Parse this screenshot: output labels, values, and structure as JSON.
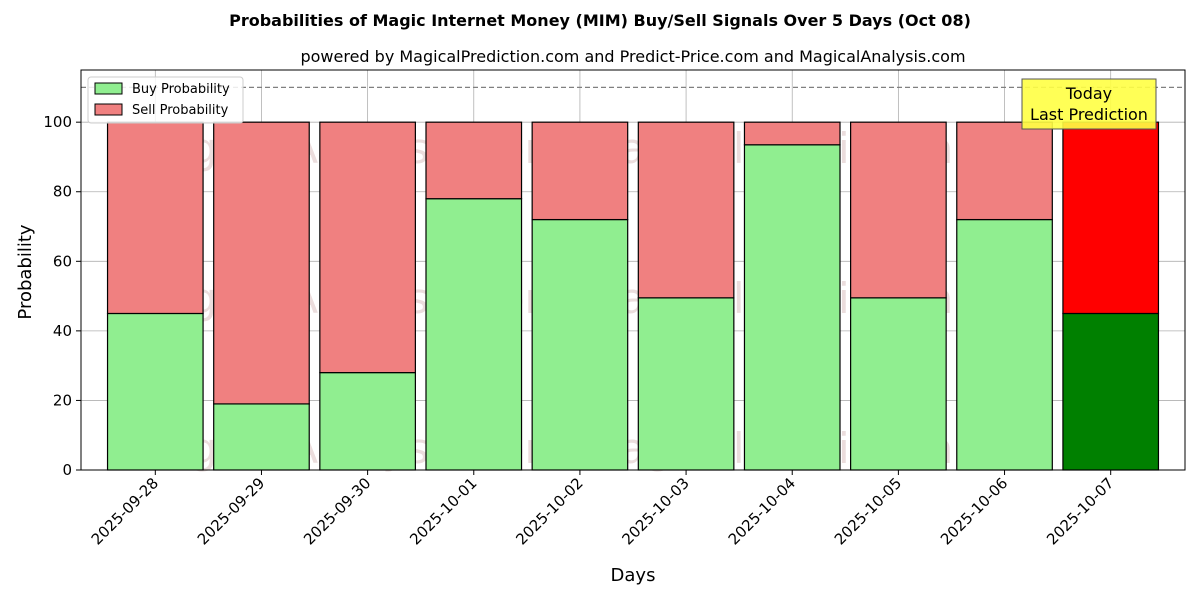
{
  "chart_data": {
    "type": "bar",
    "stacked": true,
    "title": "Probabilities of Magic Internet Money (MIM) Buy/Sell Signals Over 5 Days (Oct 08)",
    "subtitle": "powered by MagicalPrediction.com and Predict-Price.com and MagicalAnalysis.com",
    "xlabel": "Days",
    "ylabel": "Probability",
    "ylim": [
      0,
      115
    ],
    "yticks": [
      0,
      20,
      40,
      60,
      80,
      100
    ],
    "reference_line": 110,
    "grid": true,
    "legend_position": "top-left",
    "categories": [
      "2025-09-28",
      "2025-09-29",
      "2025-09-30",
      "2025-10-01",
      "2025-10-02",
      "2025-10-03",
      "2025-10-04",
      "2025-10-05",
      "2025-10-06",
      "2025-10-07"
    ],
    "series": [
      {
        "name": "Buy Probability",
        "color": "#90ee90",
        "values": [
          45,
          19,
          28,
          78,
          72,
          49.5,
          93.5,
          49.5,
          72,
          45
        ]
      },
      {
        "name": "Sell Probability",
        "color": "#f08080",
        "values": [
          55,
          81,
          72,
          22,
          28,
          50.5,
          6.5,
          50.5,
          28,
          55
        ]
      }
    ],
    "highlight": {
      "category": "2025-10-07",
      "buy_color": "#008000",
      "sell_color": "#ff0000"
    },
    "annotation": {
      "line1": "Today",
      "line2": "Last Prediction"
    },
    "watermarks": [
      "MagicalAnalysis.com",
      "MagicalPrediction.com"
    ]
  }
}
